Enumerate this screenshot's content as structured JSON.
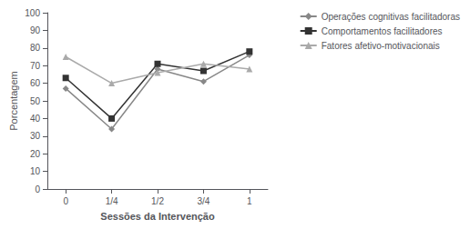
{
  "chart_data": {
    "type": "line",
    "xlabel": "Sessões da Intervenção",
    "ylabel": "Porcentagem",
    "x": [
      0,
      0.25,
      0.5,
      0.75,
      1.0
    ],
    "xlim": [
      -0.1,
      1.1
    ],
    "xticks": [
      0,
      {
        "value": 0.25,
        "label": "1/4"
      },
      {
        "value": 0.5,
        "label": "1/2"
      },
      {
        "value": 0.75,
        "label": "3/4"
      },
      1
    ],
    "ylim": [
      0,
      100
    ],
    "yticks": [
      0,
      10,
      20,
      30,
      40,
      50,
      60,
      70,
      80,
      90,
      100
    ],
    "series": [
      {
        "name": "Operações cognitivas facilitadoras",
        "values": [
          57,
          34,
          68,
          61,
          76
        ],
        "color": "#888888",
        "marker": "diamond"
      },
      {
        "name": "Comportamentos facilitadores",
        "values": [
          63,
          40,
          71,
          67,
          78
        ],
        "color": "#333333",
        "marker": "square"
      },
      {
        "name": "Fatores afetivo-motivacionais",
        "values": [
          75,
          60,
          66,
          71,
          68
        ],
        "color": "#aaaaaa",
        "marker": "triangle"
      }
    ],
    "legend": "upper right",
    "grid": false
  }
}
